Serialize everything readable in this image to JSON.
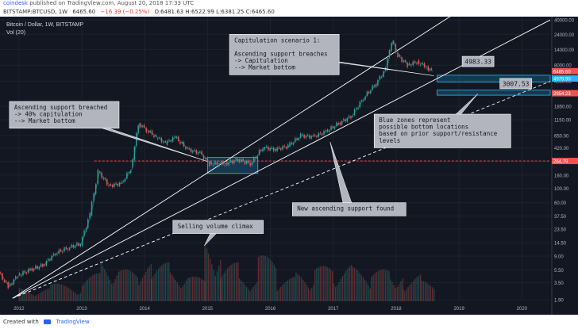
{
  "header": {
    "author": "coindesk",
    "published": "published on TradingView.com, August 20, 2018 17:33 UTC"
  },
  "symbol_bar": {
    "symbol": "BITSTAMP:BTCUSD, 1W",
    "price": "6465.60",
    "change": "−16.39 (−0.25%)",
    "ohlc": "O:6481.63 H:6522.99 L:6381.25 C:6465.60"
  },
  "footer": {
    "created_with": "Created with",
    "brand": "TradingView"
  },
  "colors": {
    "up": "#26a69a",
    "down": "#ef5350",
    "zone": "#29b6f6",
    "bg": "#131722",
    "callout": "#b2b5be"
  },
  "chart_data": {
    "type": "line",
    "title": "Bitcoin / Dollar, 1W, BITSTAMP",
    "subtitle": "Vol (20)",
    "yscale": "log",
    "ylim": [
      1.8,
      45000
    ],
    "xlim": [
      2011.7,
      2020.45
    ],
    "x_ticks": [
      "2012",
      "2013",
      "2014",
      "2015",
      "2016",
      "2017",
      "2018",
      "2019",
      "2020"
    ],
    "y_ticks": [
      40000,
      24000,
      14000,
      8000,
      4500,
      1850,
      1150,
      650,
      420,
      260,
      160,
      100,
      60,
      37.5,
      23.5,
      14.5,
      9.0,
      5.5,
      3.5,
      1.9
    ],
    "y_tick_labels": [
      "40000.00",
      "24000.00",
      "14000.00",
      "8000.00",
      "4500.00",
      "1850.00",
      "1150.00",
      "650.00",
      "420.00",
      "260.00",
      "160.00",
      "100.00",
      "60.00",
      "37.50",
      "23.50",
      "14.50",
      "9.00",
      "5.50",
      "3.50",
      "1.90"
    ],
    "price_labels": [
      {
        "text": "6465.60",
        "y": 6465.6,
        "color": "#ef5350"
      },
      {
        "text": "4979.90",
        "y": 4979.9,
        "color": "#29b6f6"
      },
      {
        "text": "2954.23",
        "y": 2954.23,
        "color": "#ef5350"
      },
      {
        "text": "264.79",
        "y": 264.79,
        "color": "#ef5350"
      }
    ],
    "series": [
      {
        "x": [
          2011.7,
          2011.85,
          2012.0,
          2012.2,
          2012.4,
          2012.6,
          2012.8,
          2013.0,
          2013.15,
          2013.28,
          2013.45,
          2013.65,
          2013.8,
          2013.92,
          2014.05,
          2014.2,
          2014.35,
          2014.5,
          2014.7,
          2014.9,
          2015.05,
          2015.3,
          2015.5,
          2015.7,
          2015.9,
          2016.1,
          2016.3,
          2016.5,
          2016.7,
          2016.9,
          2017.1,
          2017.3,
          2017.5,
          2017.7,
          2017.85,
          2017.95,
          2018.05,
          2018.2,
          2018.35,
          2018.5,
          2018.58
        ],
        "y": [
          5.0,
          3.0,
          4.5,
          5.5,
          6.5,
          10.0,
          12.0,
          14.0,
          40,
          180,
          110,
          120,
          200,
          1000,
          800,
          620,
          500,
          620,
          400,
          350,
          240,
          240,
          280,
          240,
          430,
          400,
          450,
          650,
          630,
          750,
          1000,
          1300,
          2500,
          4200,
          7000,
          19000,
          11000,
          8000,
          9000,
          7500,
          6465.6
        ]
      }
    ],
    "trendlines": [
      {
        "x": [
          2011.9,
          2018.9
        ],
        "y": [
          2.0,
          48000
        ],
        "style": "solid"
      },
      {
        "x": [
          2011.9,
          2020.45
        ],
        "y": [
          2.0,
          40000
        ],
        "style": "solid"
      },
      {
        "x": [
          2011.9,
          2020.45
        ],
        "y": [
          2.0,
          4500
        ],
        "style": "dashed"
      }
    ],
    "horizontal_lines": [
      {
        "y": 264.79,
        "x_from": 2013.2,
        "color": "#ef5350",
        "style": "dashed"
      }
    ],
    "zones": [
      {
        "x": [
          2015.0,
          2015.8
        ],
        "y": [
          170,
          300
        ]
      },
      {
        "x": [
          2018.65,
          2020.45
        ],
        "y": [
          4400,
          5600
        ]
      },
      {
        "x": [
          2018.65,
          2020.45
        ],
        "y": [
          2750,
          3300
        ]
      }
    ],
    "zone_labels": [
      {
        "text": "4983.33",
        "x": 2019.05,
        "y": 9000
      },
      {
        "text": "3007.53",
        "x": 2019.65,
        "y": 4100
      }
    ],
    "annotations": [
      {
        "lines": [
          "Capitulation scenario 1:",
          "",
          "Ascending support breaches",
          "-> Capitulation",
          "--> Market bottom"
        ],
        "box_x": 2015.35,
        "box_y": 24000,
        "point_x": 2018.6,
        "point_y": 5500
      },
      {
        "lines": [
          "Ascending support breached",
          "-> 40% capitulation",
          "--> Market bottom"
        ],
        "box_x": 2011.85,
        "box_y": 2200,
        "point_x": 2015.0,
        "point_y": 260
      },
      {
        "lines": [
          "Selling volume climax"
        ],
        "box_x": 2014.45,
        "box_y": 32,
        "point_x": 2014.95,
        "point_y": 13
      },
      {
        "lines": [
          "New ascending support found"
        ],
        "box_x": 2016.35,
        "box_y": 60,
        "point_x": 2016.95,
        "point_y": 520
      },
      {
        "lines": [
          "Blue zones represent",
          "possible bottom locations",
          "based on prior support/resistance",
          "levels"
        ],
        "box_x": 2017.65,
        "box_y": 1400,
        "point_x": 2019.3,
        "point_y": 2900
      }
    ],
    "volume": {
      "x": [
        2012.0,
        2012.5,
        2013.0,
        2013.3,
        2013.6,
        2013.9,
        2014.1,
        2014.4,
        2014.7,
        2014.95,
        2015.2,
        2015.5,
        2015.8,
        2016.1,
        2016.4,
        2016.7,
        2017.0,
        2017.3,
        2017.6,
        2017.9,
        2018.1,
        2018.4
      ],
      "y": [
        0.2,
        0.25,
        0.4,
        0.65,
        0.45,
        0.6,
        0.55,
        0.5,
        0.35,
        1.0,
        0.55,
        0.4,
        0.65,
        0.35,
        0.45,
        0.5,
        0.55,
        0.5,
        0.45,
        0.5,
        0.4,
        0.3
      ]
    }
  }
}
